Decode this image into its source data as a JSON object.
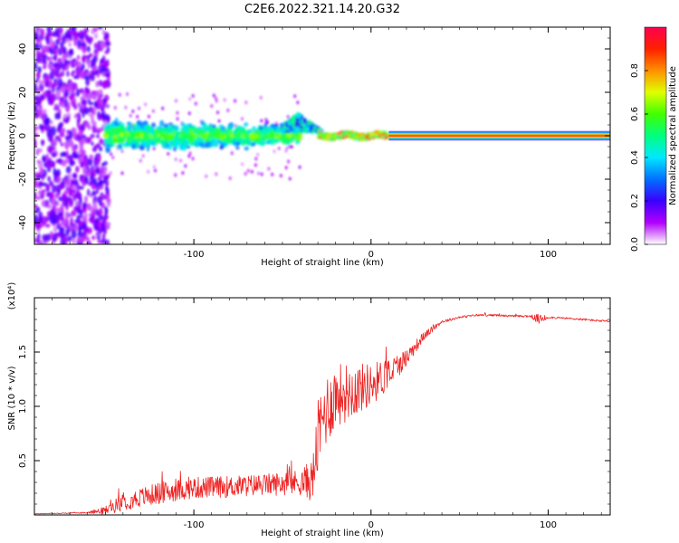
{
  "figure": {
    "title": "C2E6.2022.321.14.20.G32"
  },
  "chart_data": [
    {
      "type": "heatmap",
      "xlabel": "Height of straight line (km)",
      "ylabel": "Frequency (Hz)",
      "xlim": [
        -190,
        135
      ],
      "ylim": [
        -50,
        50
      ],
      "xticks": [
        -100,
        0,
        100
      ],
      "yticks": [
        -40,
        -20,
        0,
        20,
        40
      ],
      "colorbar": {
        "label": "Normalized spectral amplitude",
        "range": [
          0,
          1
        ],
        "ticks": [
          "0.0",
          "0.2",
          "0.4",
          "0.6",
          "0.8"
        ],
        "colors": [
          "#ffffff",
          "#b000ff",
          "#3a00ff",
          "#0070ff",
          "#00e8ff",
          "#00ff80",
          "#40ff00",
          "#e0ff00",
          "#ff9000",
          "#ff2000",
          "#ff0050"
        ]
      },
      "features": [
        {
          "name": "scattered noise",
          "x_range": [
            -190,
            -150
          ],
          "y_range": [
            -50,
            50
          ],
          "amplitude": 0.15
        },
        {
          "name": "broadened band",
          "x_range": [
            -150,
            -40
          ],
          "y_range": [
            -8,
            8
          ],
          "amplitude": 0.35
        },
        {
          "name": "band tip",
          "x_range": [
            -50,
            -28
          ],
          "y_range": [
            0,
            15
          ],
          "amplitude": 0.4
        },
        {
          "name": "narrowing line",
          "x_range": [
            -30,
            10
          ],
          "y_range": [
            -2,
            2
          ],
          "amplitude": 0.8
        },
        {
          "name": "steady line",
          "x_range": [
            10,
            135
          ],
          "y_center": 0,
          "amplitude": 0.95
        }
      ]
    },
    {
      "type": "line",
      "xlabel": "Height of straight line (km)",
      "ylabel": "SNR (10 * v/v)",
      "multiplier": "(x10⁴)",
      "xlim": [
        -190,
        135
      ],
      "ylim": [
        0,
        2.0
      ],
      "xticks": [
        -100,
        0,
        100
      ],
      "yticks": [
        "0.5",
        "1.0",
        "1.5"
      ],
      "series": [
        {
          "color": "#ee2222",
          "x": [
            -190,
            -160,
            -150,
            -140,
            -120,
            -100,
            -80,
            -60,
            -40,
            -33,
            -30,
            -26,
            -20,
            -10,
            0,
            10,
            20,
            30,
            40,
            50,
            60,
            70,
            80,
            90,
            95,
            100,
            110,
            120,
            135
          ],
          "y": [
            0.01,
            0.02,
            0.04,
            0.12,
            0.2,
            0.25,
            0.26,
            0.28,
            0.3,
            0.32,
            0.7,
            0.95,
            1.1,
            1.15,
            1.2,
            1.3,
            1.45,
            1.65,
            1.78,
            1.82,
            1.84,
            1.84,
            1.83,
            1.83,
            1.8,
            1.82,
            1.81,
            1.8,
            1.78
          ],
          "noise": [
            0.002,
            0.005,
            0.04,
            0.08,
            0.1,
            0.1,
            0.1,
            0.1,
            0.12,
            0.2,
            0.35,
            0.35,
            0.3,
            0.25,
            0.2,
            0.15,
            0.08,
            0.04,
            0.015,
            0.01,
            0.01,
            0.01,
            0.01,
            0.01,
            0.05,
            0.01,
            0.01,
            0.01,
            0.01
          ]
        }
      ]
    }
  ]
}
